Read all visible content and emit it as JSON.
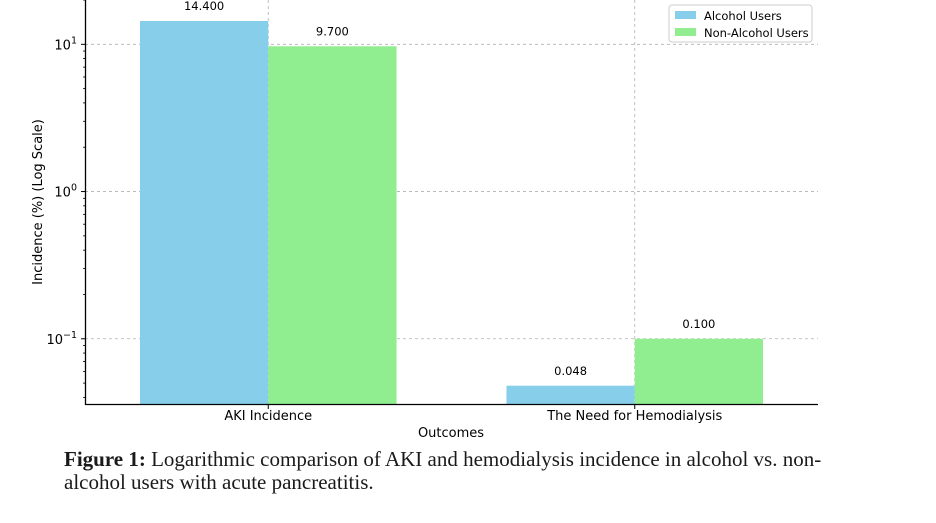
{
  "chart_data": {
    "type": "bar",
    "categories": [
      "AKI Incidence",
      "The Need for Hemodialysis"
    ],
    "series": [
      {
        "name": "Alcohol Users",
        "values": [
          14.4,
          0.048
        ],
        "labels": [
          "14.400",
          "0.048"
        ],
        "color": "#87ceeb"
      },
      {
        "name": "Non-Alcohol Users",
        "values": [
          9.7,
          0.1
        ],
        "labels": [
          "9.700",
          "0.100"
        ],
        "color": "#90ee90"
      }
    ],
    "xlabel": "Outcomes",
    "ylabel": "Incidence (%) (Log Scale)",
    "yscale": "log",
    "ylim": [
      0.0355,
      20
    ],
    "yticks": [
      0.1,
      1,
      10
    ],
    "ytick_labels": [
      {
        "base": "10",
        "exp": "−1"
      },
      {
        "base": "10",
        "exp": "0"
      },
      {
        "base": "10",
        "exp": "1"
      }
    ],
    "grid": true,
    "legend_position": "top-right"
  },
  "caption": {
    "label": "Figure 1:",
    "text": "Logarithmic comparison of AKI and hemodialysis incidence in alcohol vs. non-alcohol users with acute pancreatitis."
  }
}
